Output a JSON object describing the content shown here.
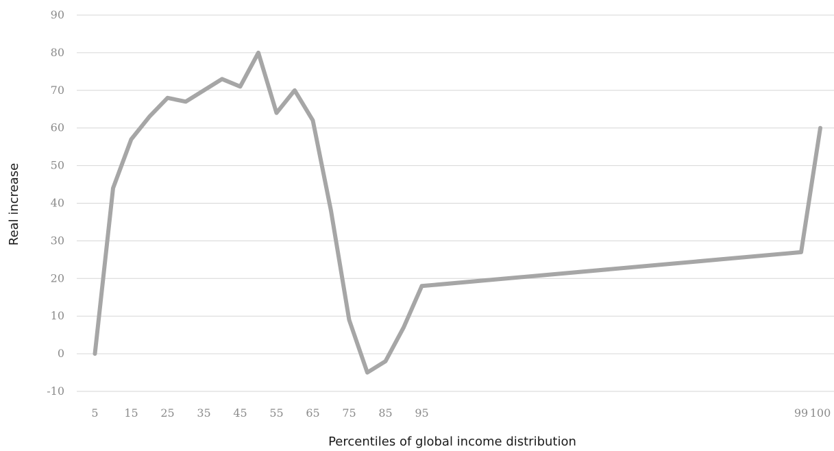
{
  "chart_data": {
    "type": "line",
    "title": "",
    "xlabel": "Percentiles of global income distribution",
    "ylabel": "Real increase",
    "ylim": [
      -10,
      90
    ],
    "yticks": [
      -10,
      0,
      10,
      20,
      30,
      40,
      50,
      60,
      70,
      80,
      90
    ],
    "xtick_labels": [
      "5",
      "15",
      "25",
      "35",
      "45",
      "55",
      "65",
      "75",
      "85",
      "95",
      "99",
      "100"
    ],
    "grid": true,
    "legend": "none",
    "series_color": "#a6a6a6",
    "x": [
      5,
      10,
      15,
      20,
      25,
      30,
      35,
      40,
      45,
      50,
      55,
      60,
      65,
      70,
      75,
      80,
      85,
      90,
      95,
      99,
      100
    ],
    "series": [
      {
        "values": [
          0,
          44,
          57,
          63,
          68,
          67,
          70,
          73,
          71,
          80,
          64,
          70,
          62,
          38,
          9,
          -5,
          -2,
          7,
          18,
          27,
          60
        ]
      }
    ]
  }
}
